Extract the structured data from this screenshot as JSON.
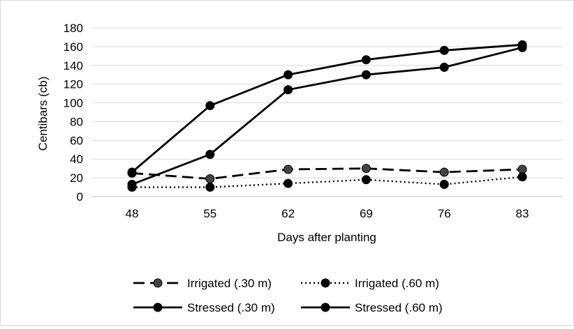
{
  "chart_data": {
    "type": "line",
    "x": [
      48,
      55,
      62,
      69,
      76,
      83
    ],
    "xlabel": "Days after planting",
    "ylabel": "Centibars (cb)",
    "ylim": [
      0,
      180
    ],
    "yticks": [
      0,
      20,
      40,
      60,
      80,
      100,
      120,
      140,
      160,
      180
    ],
    "grid": "horizontal",
    "legend_position": "bottom",
    "series": [
      {
        "name": "Irrigated (.30 m)",
        "style": "dashed",
        "marker_color": "#444444",
        "values": [
          25,
          19,
          29,
          30,
          26,
          29
        ]
      },
      {
        "name": "Irrigated (.60 m)",
        "style": "dotted",
        "marker_color": "#000000",
        "values": [
          10,
          10,
          14,
          18,
          13,
          21
        ]
      },
      {
        "name": "Stressed (.30 m)",
        "style": "solid",
        "marker_color": "#000000",
        "values": [
          13,
          45,
          114,
          130,
          138,
          159
        ]
      },
      {
        "name": "Stressed (.60 m)",
        "style": "solid",
        "marker_color": "#000000",
        "values": [
          26,
          97,
          130,
          146,
          156,
          162
        ]
      }
    ]
  }
}
